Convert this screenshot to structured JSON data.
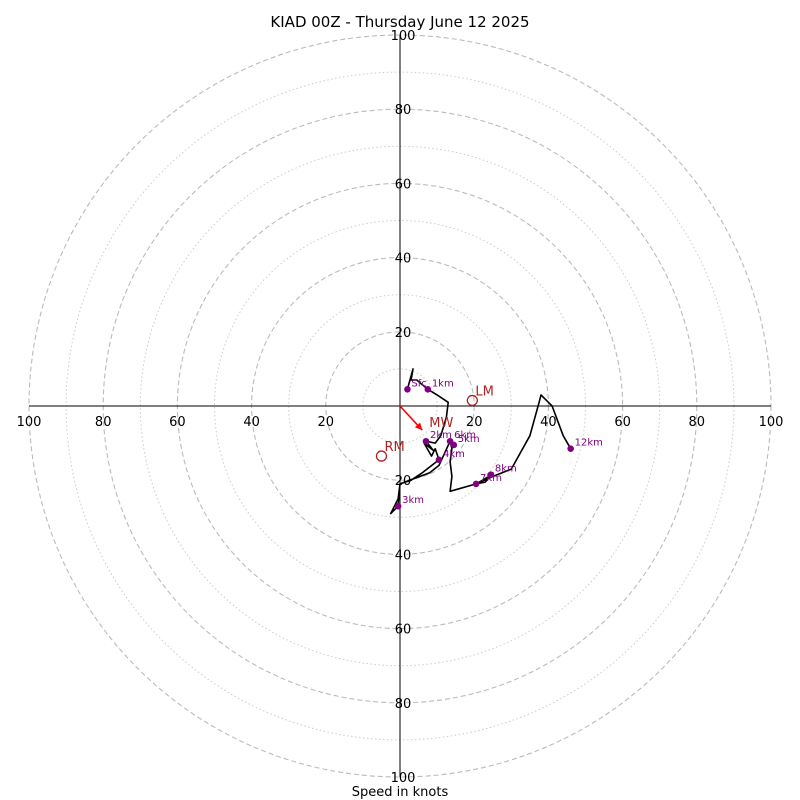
{
  "chart_data": {
    "type": "hodograph",
    "title": "KIAD 00Z - Thursday June 12 2025",
    "xlabel": "Speed in knots",
    "ylabel": "",
    "units": "knots",
    "range": 100,
    "ring_major": [
      20,
      40,
      60,
      80,
      100
    ],
    "ring_minor": [
      10,
      30,
      50,
      70,
      90
    ],
    "tick_values": [
      20,
      40,
      60,
      80,
      100
    ],
    "grid": true,
    "colors": {
      "trace": "#000000",
      "marker": "#800080",
      "marker_label": "#800080",
      "storm_motion": "#b22222",
      "mean_wind": "#ff0000",
      "grid": "#bbbbbb"
    },
    "trace": [
      [
        2,
        4.5
      ],
      [
        3.5,
        10
      ],
      [
        3,
        7
      ],
      [
        4.5,
        7
      ],
      [
        7.5,
        4.5
      ],
      [
        10,
        3
      ],
      [
        13,
        1
      ],
      [
        12.5,
        -3
      ],
      [
        11,
        -8
      ],
      [
        9.5,
        -10
      ],
      [
        7,
        -9.5
      ],
      [
        9,
        -12
      ],
      [
        6.5,
        -10
      ],
      [
        8.5,
        -13.5
      ],
      [
        9.5,
        -11.5
      ],
      [
        10.5,
        -14.5
      ],
      [
        6,
        -18
      ],
      [
        3,
        -20
      ],
      [
        0,
        -21
      ],
      [
        -0.5,
        -25
      ],
      [
        -2.5,
        -29
      ],
      [
        -0.5,
        -27
      ],
      [
        0,
        -21
      ],
      [
        8,
        -18
      ],
      [
        10.5,
        -16
      ],
      [
        13.5,
        -9.5
      ],
      [
        14,
        -11.5
      ],
      [
        13.5,
        -15
      ],
      [
        14,
        -19
      ],
      [
        13.5,
        -23
      ],
      [
        20.5,
        -21
      ],
      [
        23,
        -20.5
      ],
      [
        25,
        -18
      ],
      [
        24,
        -19
      ],
      [
        20.5,
        -21
      ],
      [
        25,
        -19
      ],
      [
        30,
        -17
      ],
      [
        35,
        -8
      ],
      [
        37.5,
        1
      ],
      [
        38,
        3
      ],
      [
        40,
        1
      ],
      [
        41,
        0
      ],
      [
        44,
        -8
      ],
      [
        46,
        -11.5
      ]
    ],
    "height_markers": [
      {
        "label": "Sfc",
        "u": 2,
        "v": 4.5
      },
      {
        "label": "1km",
        "u": 7.5,
        "v": 4.5
      },
      {
        "label": "2km",
        "u": 7,
        "v": -9.5
      },
      {
        "label": "3km",
        "u": -0.5,
        "v": -27
      },
      {
        "label": "4km",
        "u": 10.5,
        "v": -14.5
      },
      {
        "label": "5km",
        "u": 14.5,
        "v": -10.5
      },
      {
        "label": "6km",
        "u": 13.5,
        "v": -9.5
      },
      {
        "label": "7km",
        "u": 20.5,
        "v": -21
      },
      {
        "label": "8km",
        "u": 24.5,
        "v": -18.5
      },
      {
        "label": "12km",
        "u": 46,
        "v": -11.5
      }
    ],
    "storm_motion": [
      {
        "label": "LM",
        "u": 19.5,
        "v": 1.5
      },
      {
        "label": "RM",
        "u": -5,
        "v": -13.5
      }
    ],
    "mean_wind": {
      "label": "MW",
      "u": 6,
      "v": -6.5
    }
  }
}
